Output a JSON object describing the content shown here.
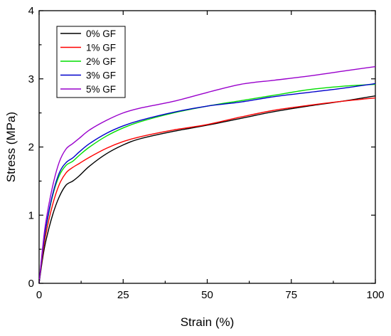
{
  "chart_data": {
    "type": "line",
    "title": "",
    "xlabel": "Strain (%)",
    "ylabel": "Stress (MPa)",
    "xlim": [
      0,
      100
    ],
    "ylim": [
      0,
      4
    ],
    "x_ticks": [
      0,
      25,
      50,
      75,
      100
    ],
    "y_ticks": [
      0,
      1,
      2,
      3,
      4
    ],
    "x_tick_labels": [
      "0",
      "25",
      "50",
      "75",
      "100"
    ],
    "y_tick_labels": [
      "0",
      "1",
      "2",
      "3",
      "4"
    ],
    "grid": false,
    "legend_position": "top-left",
    "series": [
      {
        "name": "0% GF",
        "color": "#000000",
        "x": [
          0,
          1,
          2,
          4,
          6,
          8,
          10,
          12,
          15,
          20,
          25,
          30,
          40,
          50,
          60,
          70,
          80,
          90,
          100
        ],
        "y": [
          0,
          0.35,
          0.62,
          1.0,
          1.27,
          1.44,
          1.5,
          1.58,
          1.72,
          1.9,
          2.03,
          2.12,
          2.23,
          2.32,
          2.42,
          2.52,
          2.6,
          2.67,
          2.75
        ]
      },
      {
        "name": "1% GF",
        "color": "#ff0000",
        "x": [
          0,
          1,
          2,
          4,
          6,
          8,
          10,
          12,
          15,
          20,
          25,
          30,
          40,
          50,
          60,
          70,
          80,
          90,
          100
        ],
        "y": [
          0,
          0.4,
          0.72,
          1.15,
          1.45,
          1.62,
          1.7,
          1.76,
          1.85,
          1.98,
          2.08,
          2.15,
          2.25,
          2.33,
          2.44,
          2.54,
          2.61,
          2.67,
          2.72
        ]
      },
      {
        "name": "2% GF",
        "color": "#00dd00",
        "x": [
          0,
          1,
          2,
          4,
          6,
          8,
          10,
          12,
          15,
          20,
          25,
          30,
          40,
          50,
          60,
          70,
          80,
          90,
          100
        ],
        "y": [
          0,
          0.45,
          0.8,
          1.28,
          1.58,
          1.73,
          1.79,
          1.88,
          2.0,
          2.16,
          2.28,
          2.37,
          2.5,
          2.6,
          2.68,
          2.76,
          2.84,
          2.89,
          2.92
        ]
      },
      {
        "name": "3% GF",
        "color": "#0000cc",
        "x": [
          0,
          1,
          2,
          4,
          6,
          8,
          10,
          12,
          15,
          20,
          25,
          30,
          40,
          50,
          60,
          70,
          80,
          90,
          100
        ],
        "y": [
          0,
          0.46,
          0.82,
          1.3,
          1.62,
          1.77,
          1.84,
          1.93,
          2.05,
          2.2,
          2.31,
          2.39,
          2.51,
          2.6,
          2.66,
          2.74,
          2.8,
          2.86,
          2.93
        ]
      },
      {
        "name": "5% GF",
        "color": "#9900cc",
        "x": [
          0,
          1,
          2,
          4,
          6,
          8,
          10,
          12,
          15,
          20,
          25,
          30,
          40,
          50,
          60,
          70,
          80,
          90,
          100
        ],
        "y": [
          0,
          0.5,
          0.9,
          1.42,
          1.78,
          1.97,
          2.05,
          2.13,
          2.25,
          2.39,
          2.5,
          2.57,
          2.67,
          2.8,
          2.92,
          2.98,
          3.04,
          3.11,
          3.18
        ]
      }
    ]
  }
}
